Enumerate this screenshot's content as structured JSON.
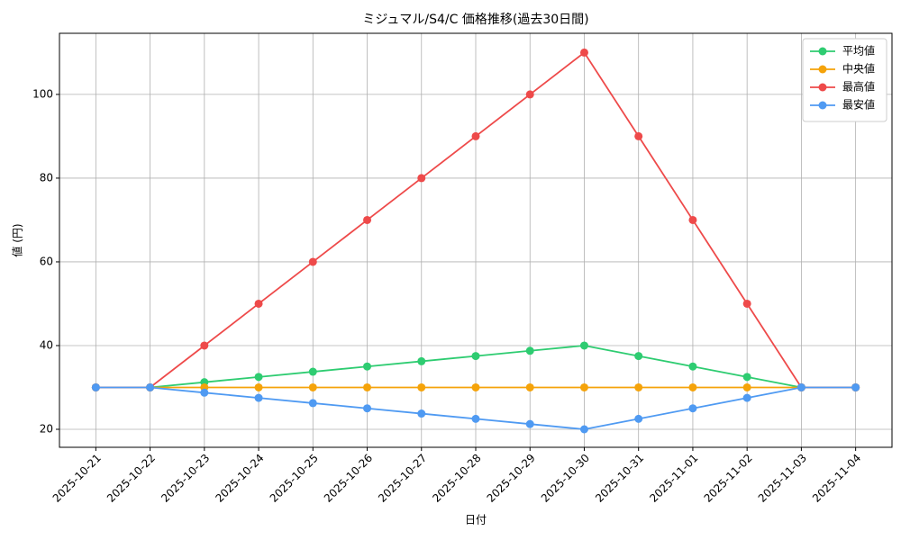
{
  "chart_data": {
    "type": "line",
    "title": "ミジュマル/S4/C 価格推移(過去30日間)",
    "x_label": "日付",
    "y_label": "値 (円)",
    "categories": [
      "2025-10-21",
      "2025-10-22",
      "2025-10-23",
      "2025-10-24",
      "2025-10-25",
      "2025-10-26",
      "2025-10-27",
      "2025-10-28",
      "2025-10-29",
      "2025-10-30",
      "2025-10-31",
      "2025-11-01",
      "2025-11-02",
      "2025-11-03",
      "2025-11-04"
    ],
    "series": [
      {
        "name": "平均値",
        "color": "#2ecc71",
        "values": [
          30,
          30,
          31.25,
          32.5,
          33.75,
          35,
          36.25,
          37.5,
          38.75,
          40,
          37.5,
          35,
          32.5,
          30,
          30
        ]
      },
      {
        "name": "中央値",
        "color": "#f5a30a",
        "values": [
          30,
          30,
          30,
          30,
          30,
          30,
          30,
          30,
          30,
          30,
          30,
          30,
          30,
          30,
          30
        ]
      },
      {
        "name": "最高値",
        "color": "#ee4a4a",
        "values": [
          30,
          30,
          40,
          50,
          60,
          70,
          80,
          90,
          100,
          110,
          90,
          70,
          50,
          30,
          30
        ]
      },
      {
        "name": "最安値",
        "color": "#4f9af2",
        "values": [
          30,
          30,
          28.75,
          27.5,
          26.25,
          25,
          23.75,
          22.5,
          21.25,
          20,
          22.5,
          25,
          27.5,
          30,
          30
        ]
      }
    ],
    "ylim": [
      15.7,
      114.6
    ],
    "yticks": [
      20,
      40,
      60,
      80,
      100
    ],
    "grid": true,
    "legend": "upper right"
  }
}
